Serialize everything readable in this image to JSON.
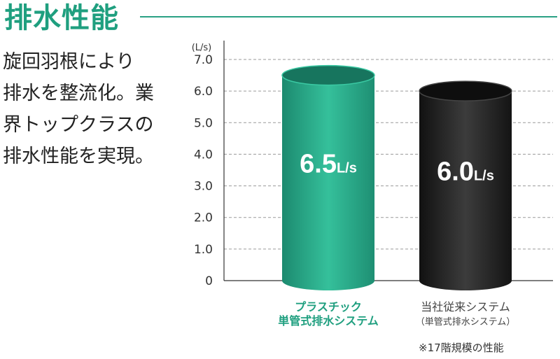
{
  "heading": "排水性能",
  "description": [
    "旋回羽根により",
    "排水を整流化。業",
    "界トップクラスの",
    "排水性能を実現。"
  ],
  "note": "※17階規模の性能",
  "colors": {
    "accent": "#1f9f7f",
    "green_bar": "#2cae8d",
    "black_bar": "#2a2a2a",
    "grid": "#9a9a9a"
  },
  "chart_data": {
    "type": "bar",
    "unit_label": "(L/s)",
    "ylim": [
      0,
      7.0
    ],
    "ticks": [
      "0",
      "1.0",
      "2.0",
      "3.0",
      "4.0",
      "5.0",
      "6.0",
      "7.0"
    ],
    "grid": true,
    "categories": [
      {
        "label": [
          "プラスチック",
          "単管式排水システム"
        ],
        "value": 6.5,
        "value_text": "6.5",
        "unit": "L/s",
        "color": "#2cae8d",
        "label_color": "#1f9f7f",
        "bold": true
      },
      {
        "label": [
          "当社従来システム",
          "（単管式排水システム）"
        ],
        "value": 6.0,
        "value_text": "6.0",
        "unit": "L/s",
        "color": "#2a2a2a",
        "label_color": "#444444",
        "bold": false
      }
    ]
  }
}
